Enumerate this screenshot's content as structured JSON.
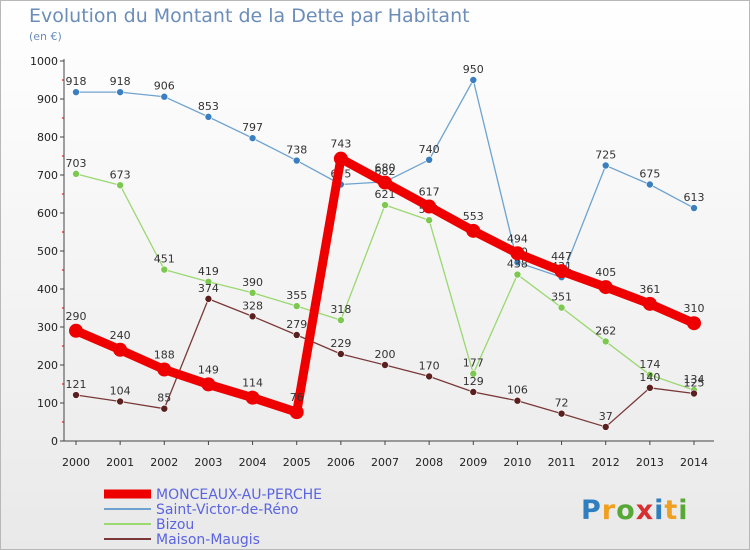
{
  "header": {
    "title": "Evolution du Montant de la Dette par Habitant",
    "subtitle": "(en €)"
  },
  "logo": {
    "text": "Proxiti",
    "letters": [
      "P",
      "r",
      "o",
      "x",
      "i",
      "t",
      "i"
    ],
    "colors": [
      "#2f7fc0",
      "#f0a020",
      "#58a838",
      "#d83030",
      "#2f7fc0",
      "#f0a020",
      "#58a838"
    ]
  },
  "chart_data": {
    "type": "line",
    "x": [
      "2000",
      "2001",
      "2002",
      "2003",
      "2004",
      "2005",
      "2006",
      "2007",
      "2008",
      "2009",
      "2010",
      "2011",
      "2012",
      "2013",
      "2014"
    ],
    "ylim": [
      0,
      1000
    ],
    "yticks": [
      0,
      100,
      200,
      300,
      400,
      500,
      600,
      700,
      800,
      900,
      1000
    ],
    "grid": false,
    "legend_position": "bottom-left",
    "series": [
      {
        "name": "Saint-Victor-de-Réno",
        "color": "#6fa3cf",
        "marker": "#3b7fc0",
        "width": 1.3,
        "r": 3.5,
        "values": [
          918,
          918,
          906,
          853,
          797,
          738,
          675,
          682,
          740,
          950,
          470,
          431,
          725,
          675,
          613
        ]
      },
      {
        "name": "Bizou",
        "color": "#9ad870",
        "marker": "#7cc850",
        "width": 1.3,
        "r": 3.5,
        "values": [
          703,
          673,
          451,
          419,
          390,
          355,
          318,
          621,
          581,
          177,
          438,
          351,
          262,
          174,
          134
        ]
      },
      {
        "name": "Maison-Maugis",
        "color": "#7a3838",
        "marker": "#5a2020",
        "width": 1.3,
        "r": 3.5,
        "values": [
          121,
          104,
          85,
          374,
          328,
          279,
          229,
          200,
          170,
          129,
          106,
          72,
          37,
          140,
          125
        ]
      },
      {
        "name": "MONCEAUX-AU-PERCHE",
        "color": "#ee0000",
        "marker": "#ee0000",
        "width": 9,
        "r": 7,
        "values": [
          290,
          240,
          188,
          149,
          114,
          76,
          743,
          680,
          617,
          553,
          494,
          447,
          405,
          361,
          310
        ]
      }
    ],
    "legend_order": [
      "MONCEAUX-AU-PERCHE",
      "Saint-Victor-de-Réno",
      "Bizou",
      "Maison-Maugis"
    ]
  }
}
